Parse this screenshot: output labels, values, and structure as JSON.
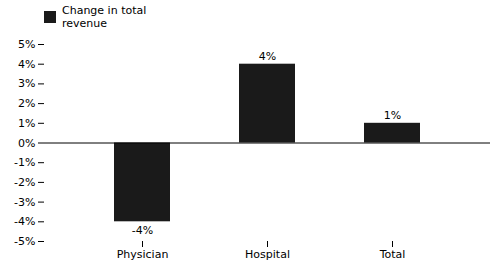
{
  "chart_data": {
    "type": "bar",
    "categories": [
      "Physician",
      "Hospital",
      "Total"
    ],
    "series": [
      {
        "name": "Change in total\nrevenue",
        "color": "#1a1a1a",
        "values": [
          -4,
          4,
          1
        ]
      }
    ],
    "value_labels": [
      "-4%",
      "4%",
      "1%"
    ],
    "data_labels": true,
    "ylim": [
      -5,
      5
    ],
    "yticks": [
      {
        "value": -5,
        "label": "-5%"
      },
      {
        "value": -4,
        "label": "-4%"
      },
      {
        "value": -3,
        "label": "-3%"
      },
      {
        "value": -2,
        "label": "-2%"
      },
      {
        "value": -1,
        "label": "-1%"
      },
      {
        "value": 0,
        "label": "0%"
      },
      {
        "value": 1,
        "label": "1%"
      },
      {
        "value": 2,
        "label": "2%"
      },
      {
        "value": 3,
        "label": "3%"
      },
      {
        "value": 4,
        "label": "4%"
      },
      {
        "value": 5,
        "label": "5%"
      }
    ],
    "legend": "upper left",
    "grid": false
  }
}
